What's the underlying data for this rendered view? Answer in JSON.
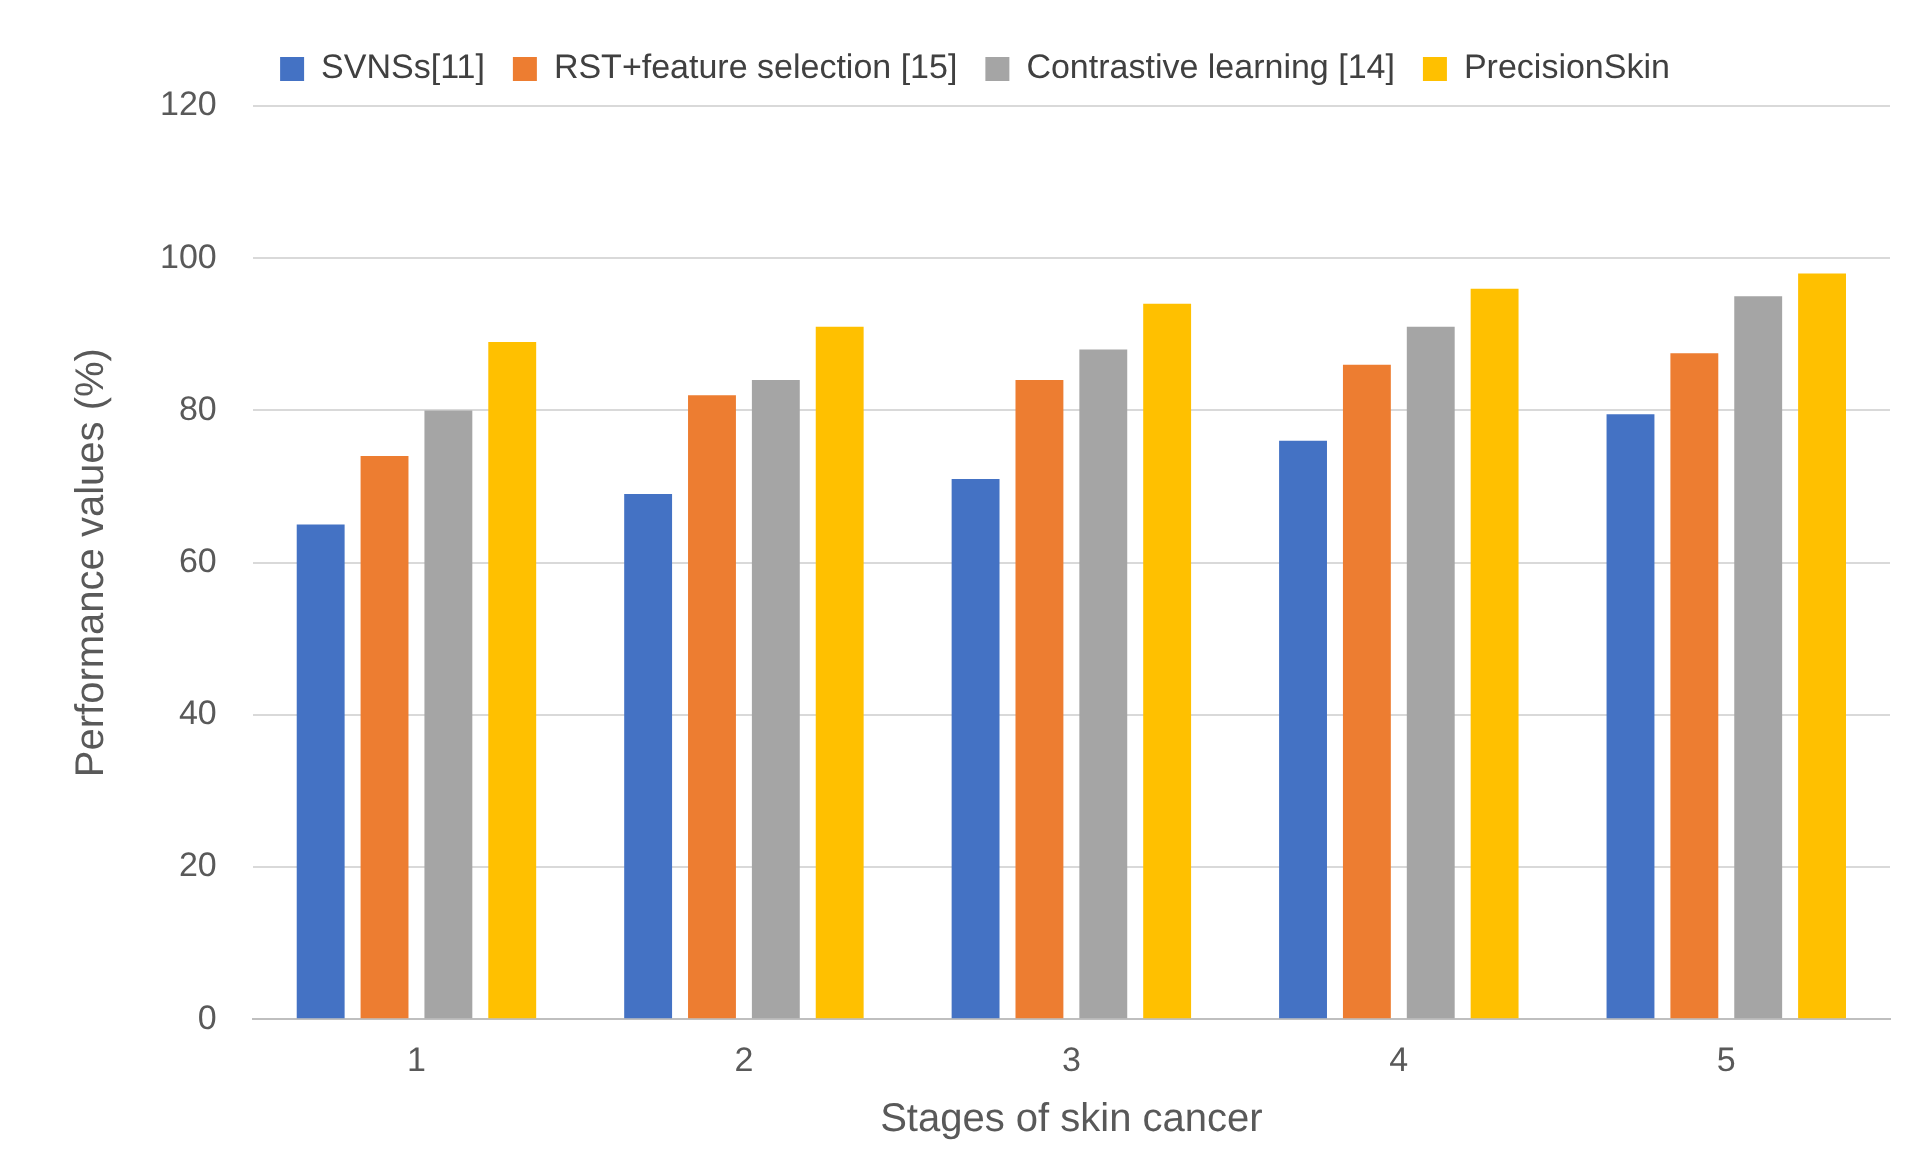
{
  "chart_data": {
    "type": "bar",
    "xlabel": "Stages of skin cancer",
    "ylabel": "Performance values (%)",
    "categories": [
      "1",
      "2",
      "3",
      "4",
      "5"
    ],
    "series": [
      {
        "name": "SVNSs[11]",
        "color": "#4472c4",
        "values": [
          65,
          69,
          71,
          76,
          79.5
        ]
      },
      {
        "name": "RST+feature selection [15]",
        "color": "#ed7d31",
        "values": [
          74,
          82,
          84,
          86,
          87.5
        ]
      },
      {
        "name": "Contrastive learning [14]",
        "color": "#a5a5a5",
        "values": [
          80,
          84,
          88,
          91,
          95
        ]
      },
      {
        "name": "PrecisionSkin",
        "color": "#ffc000",
        "values": [
          89,
          91,
          94,
          96,
          98
        ]
      }
    ],
    "ylim": [
      0,
      120
    ],
    "yticks": [
      0,
      20,
      40,
      60,
      80,
      100,
      120
    ],
    "grid": "y",
    "legend": "top"
  }
}
